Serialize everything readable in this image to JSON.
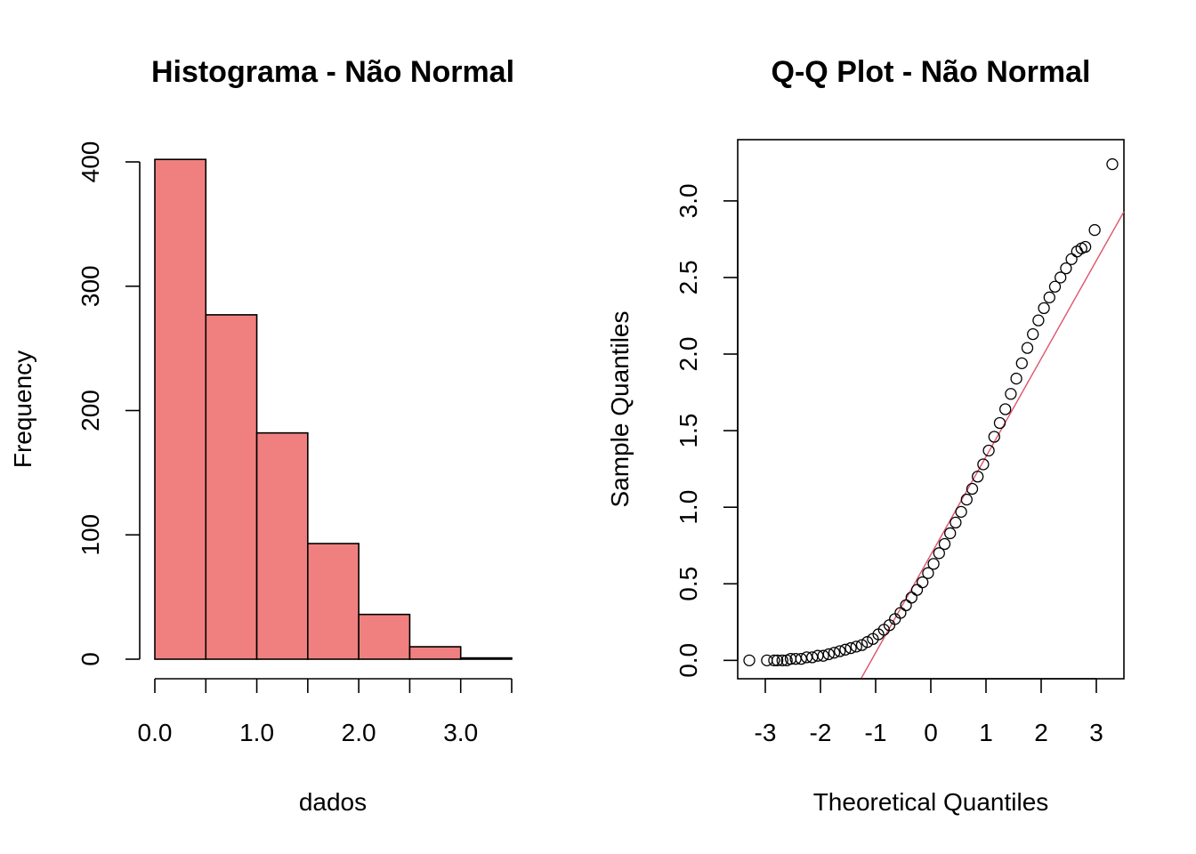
{
  "chart_data": [
    {
      "type": "bar",
      "title": "Histograma - Não Normal",
      "xlabel": "dados",
      "ylabel": "Frequency",
      "bar_color": "#F08080",
      "bin_edges": [
        0.0,
        0.5,
        1.0,
        1.5,
        2.0,
        2.5,
        3.0,
        3.5
      ],
      "values": [
        402,
        277,
        182,
        93,
        36,
        10,
        1
      ],
      "xlim": [
        0.0,
        3.5
      ],
      "ylim": [
        0,
        400
      ],
      "xticks": [
        0.0,
        0.5,
        1.0,
        1.5,
        2.0,
        2.5,
        3.0,
        3.5
      ],
      "xtick_labels": [
        "0.0",
        "1.0",
        "2.0",
        "3.0"
      ],
      "xtick_label_values": [
        0.0,
        1.0,
        2.0,
        3.0
      ],
      "yticks": [
        0,
        100,
        200,
        300,
        400
      ],
      "ytick_labels": [
        "0",
        "100",
        "200",
        "300",
        "400"
      ]
    },
    {
      "type": "scatter",
      "title": "Q-Q Plot - Não Normal",
      "xlabel": "Theoretical Quantiles",
      "ylabel": "Sample Quantiles",
      "line_color": "#DF536B",
      "xlim": [
        -3.5,
        3.5
      ],
      "ylim": [
        -0.12,
        3.4
      ],
      "xticks": [
        -3,
        -2,
        -1,
        0,
        1,
        2,
        3
      ],
      "xtick_labels": [
        "-3",
        "-2",
        "-1",
        "0",
        "1",
        "2",
        "3"
      ],
      "yticks": [
        0.0,
        0.5,
        1.0,
        1.5,
        2.0,
        2.5,
        3.0
      ],
      "ytick_labels": [
        "0.0",
        "0.5",
        "1.0",
        "1.5",
        "2.0",
        "2.5",
        "3.0"
      ],
      "reference_line": {
        "intercept": 0.69,
        "slope": 0.64
      },
      "points": [
        [
          -3.29,
          0.0
        ],
        [
          -2.97,
          0.0
        ],
        [
          -2.84,
          0.0
        ],
        [
          -2.78,
          0.0
        ],
        [
          -2.69,
          0.0
        ],
        [
          -2.61,
          0.0
        ],
        [
          -2.54,
          0.01
        ],
        [
          -2.45,
          0.01
        ],
        [
          -2.35,
          0.01
        ],
        [
          -2.25,
          0.02
        ],
        [
          -2.15,
          0.02
        ],
        [
          -2.05,
          0.03
        ],
        [
          -1.95,
          0.03
        ],
        [
          -1.85,
          0.04
        ],
        [
          -1.75,
          0.05
        ],
        [
          -1.65,
          0.06
        ],
        [
          -1.55,
          0.07
        ],
        [
          -1.45,
          0.08
        ],
        [
          -1.35,
          0.09
        ],
        [
          -1.25,
          0.1
        ],
        [
          -1.15,
          0.12
        ],
        [
          -1.05,
          0.14
        ],
        [
          -0.95,
          0.17
        ],
        [
          -0.85,
          0.2
        ],
        [
          -0.75,
          0.23
        ],
        [
          -0.65,
          0.27
        ],
        [
          -0.55,
          0.31
        ],
        [
          -0.45,
          0.36
        ],
        [
          -0.35,
          0.41
        ],
        [
          -0.25,
          0.46
        ],
        [
          -0.15,
          0.51
        ],
        [
          -0.05,
          0.57
        ],
        [
          0.05,
          0.63
        ],
        [
          0.15,
          0.7
        ],
        [
          0.25,
          0.76
        ],
        [
          0.35,
          0.83
        ],
        [
          0.45,
          0.9
        ],
        [
          0.55,
          0.97
        ],
        [
          0.65,
          1.05
        ],
        [
          0.75,
          1.12
        ],
        [
          0.85,
          1.2
        ],
        [
          0.95,
          1.28
        ],
        [
          1.05,
          1.37
        ],
        [
          1.15,
          1.46
        ],
        [
          1.25,
          1.55
        ],
        [
          1.35,
          1.64
        ],
        [
          1.45,
          1.74
        ],
        [
          1.55,
          1.84
        ],
        [
          1.65,
          1.94
        ],
        [
          1.75,
          2.04
        ],
        [
          1.85,
          2.13
        ],
        [
          1.95,
          2.22
        ],
        [
          2.05,
          2.3
        ],
        [
          2.15,
          2.37
        ],
        [
          2.25,
          2.44
        ],
        [
          2.35,
          2.5
        ],
        [
          2.45,
          2.56
        ],
        [
          2.55,
          2.62
        ],
        [
          2.65,
          2.67
        ],
        [
          2.73,
          2.69
        ],
        [
          2.8,
          2.7
        ],
        [
          2.97,
          2.81
        ],
        [
          3.29,
          3.24
        ]
      ]
    }
  ]
}
